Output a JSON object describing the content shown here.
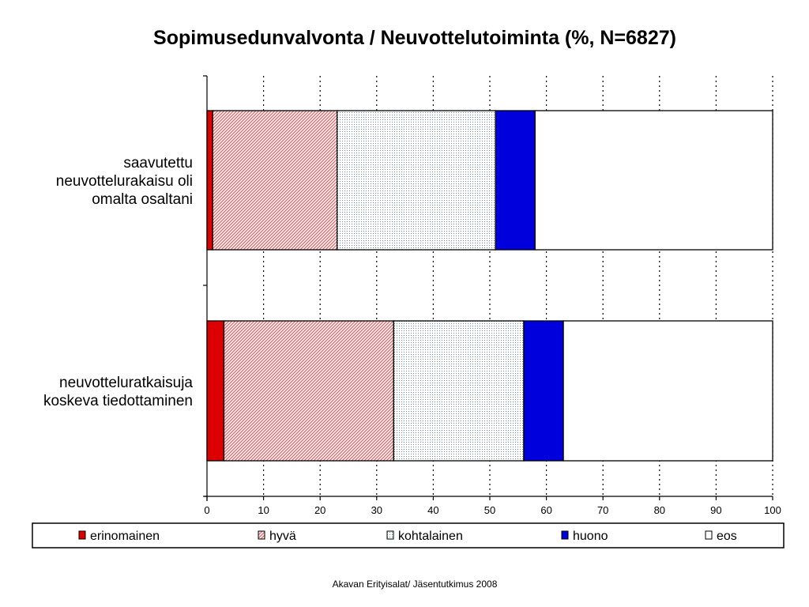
{
  "chart_data": {
    "type": "bar",
    "orientation": "horizontal",
    "stacked": true,
    "title": "Sopimusedunvalvonta / Neuvottelutoiminta (%, N=6827)",
    "categories": [
      [
        "saavutettu",
        "neuvottelurakaisu oli",
        "omalta osaltani"
      ],
      [
        "neuvotteluratkaisuja",
        "koskeva tiedottaminen"
      ]
    ],
    "series": [
      {
        "name": "erinomainen",
        "color": "#dd0000",
        "pattern": "solid",
        "values": [
          1,
          3
        ]
      },
      {
        "name": "hyvä",
        "color": "#c85050",
        "pattern": "diagonal-hatch",
        "values": [
          22,
          30
        ]
      },
      {
        "name": "kohtalainen",
        "color": "#6a8aa8",
        "pattern": "dots",
        "values": [
          28,
          23
        ]
      },
      {
        "name": "huono",
        "color": "#0000dd",
        "pattern": "solid",
        "values": [
          7,
          7
        ]
      },
      {
        "name": "eos",
        "color": "#ffffff",
        "pattern": "solid",
        "values": [
          42,
          37
        ]
      }
    ],
    "xlim": [
      0,
      100
    ],
    "xticks": [
      "0",
      "10",
      "20",
      "30",
      "40",
      "50",
      "60",
      "70",
      "80",
      "90",
      "100"
    ],
    "grid": "vertical-dotted",
    "legend_position": "bottom"
  },
  "footer": "Akavan Erityisalat/ Jäsentutkimus 2008"
}
